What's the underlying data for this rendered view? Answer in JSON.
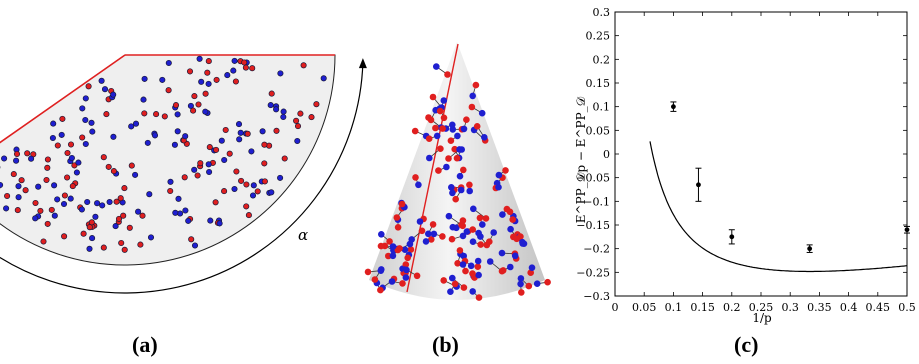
{
  "panels": {
    "a": {
      "label": "(a)",
      "angle_symbol": "α"
    },
    "b": {
      "label": "(b)"
    },
    "c": {
      "label": "(c)"
    }
  },
  "colors": {
    "red": "#e01f1f",
    "blue": "#1f1fd0",
    "edge": "#1a1a3a",
    "cut_line": "#e02020",
    "sector_fill": "#efefef"
  },
  "chart_data": {
    "type": "scatter",
    "x": [
      0.1,
      0.1429,
      0.2,
      0.3333,
      0.5
    ],
    "y": [
      0.1,
      -0.065,
      -0.175,
      -0.2,
      -0.16
    ],
    "yerr": [
      0.01,
      0.035,
      0.015,
      0.008,
      0.007
    ],
    "fit_curve": true,
    "xlim": [
      0,
      0.5
    ],
    "ylim": [
      -0.3,
      0.3
    ],
    "xticks": [
      "0",
      "0.05",
      "0.1",
      "0.15",
      "0.2",
      "0.25",
      "0.3",
      "0.35",
      "0.4",
      "0.45",
      "0.5"
    ],
    "yticks": [
      "0.3",
      "0.25",
      "0.2",
      "0.15",
      "0.1",
      "0.05",
      "0",
      "−0.05",
      "−0.1",
      "−0.15",
      "−0.2",
      "−0.25",
      "−0.3"
    ],
    "xlabel": "1/p",
    "ylabel": "E^PP_𝒟p − E^PP_𝒟"
  }
}
